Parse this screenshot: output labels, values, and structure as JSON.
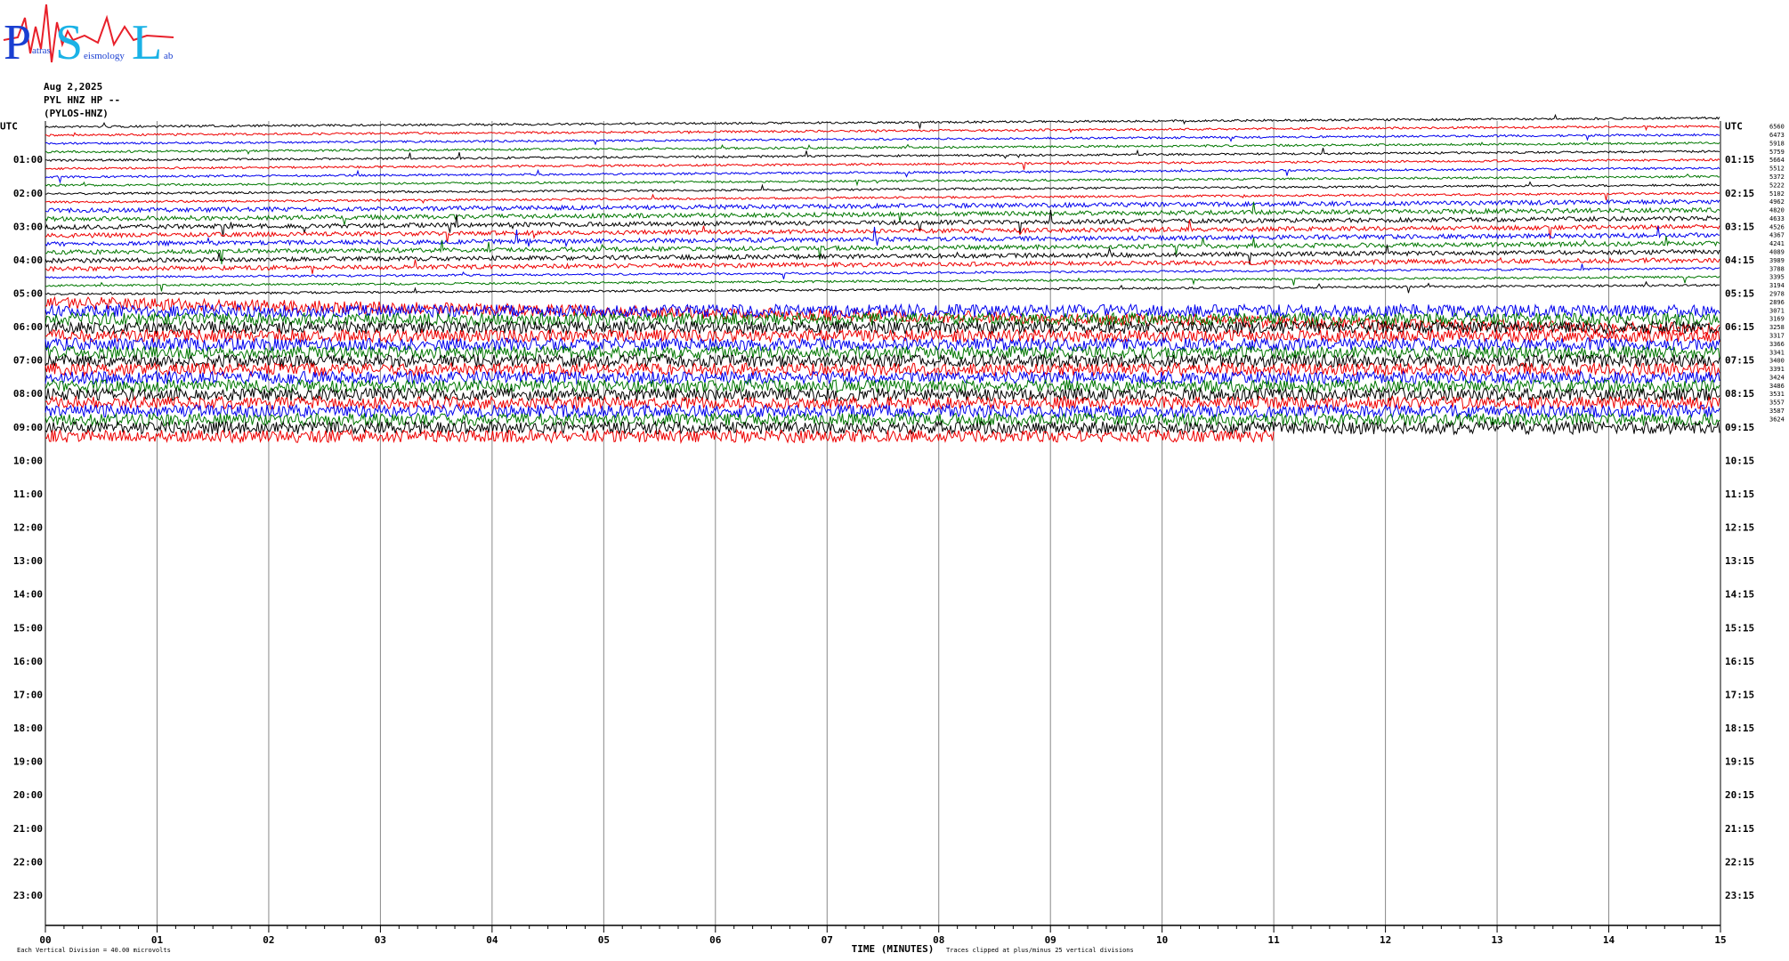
{
  "logo": {
    "letters": [
      "P",
      "S",
      "L"
    ],
    "words": [
      "atras",
      "eismology",
      "ab"
    ]
  },
  "header": {
    "date": "Aug 2,2025",
    "station": "PYL HNZ HP --",
    "site": "(PYLOS-HNZ)"
  },
  "left_labels": [
    "UTC",
    "01:00",
    "02:00",
    "03:00",
    "04:00",
    "05:00",
    "06:00",
    "07:00",
    "08:00",
    "09:00",
    "10:00",
    "11:00",
    "12:00",
    "13:00",
    "14:00",
    "15:00",
    "16:00",
    "17:00",
    "18:00",
    "19:00",
    "20:00",
    "21:00",
    "22:00",
    "23:00"
  ],
  "right_labels": [
    "UTC",
    "01:15",
    "02:15",
    "03:15",
    "04:15",
    "05:15",
    "06:15",
    "07:15",
    "08:15",
    "09:15",
    "10:15",
    "11:15",
    "12:15",
    "13:15",
    "14:15",
    "15:15",
    "16:15",
    "17:15",
    "18:15",
    "19:15",
    "20:15",
    "21:15",
    "22:15",
    "23:15"
  ],
  "counts": [
    "6560",
    "6473",
    "5918",
    "5759",
    "5664",
    "5512",
    "5372",
    "5222",
    "5102",
    "4962",
    "4820",
    "4633",
    "4526",
    "4367",
    "4241",
    "4089",
    "3989",
    "3788",
    "3395",
    "3194",
    "2978",
    "2896",
    "3071",
    "3169",
    "3258",
    "3317",
    "3366",
    "3341",
    "3400",
    "3391",
    "3424",
    "3486",
    "3531",
    "3557",
    "3587",
    "3624"
  ],
  "x_ticks": [
    "00",
    "01",
    "02",
    "03",
    "04",
    "05",
    "06",
    "07",
    "08",
    "09",
    "10",
    "11",
    "12",
    "13",
    "14",
    "15"
  ],
  "x_label": "TIME (MINUTES)",
  "scale_note": "Each Vertical Division =   40.00 microvolts",
  "clip_note": "Traces clipped at plus/minus 25 vertical divisions"
}
